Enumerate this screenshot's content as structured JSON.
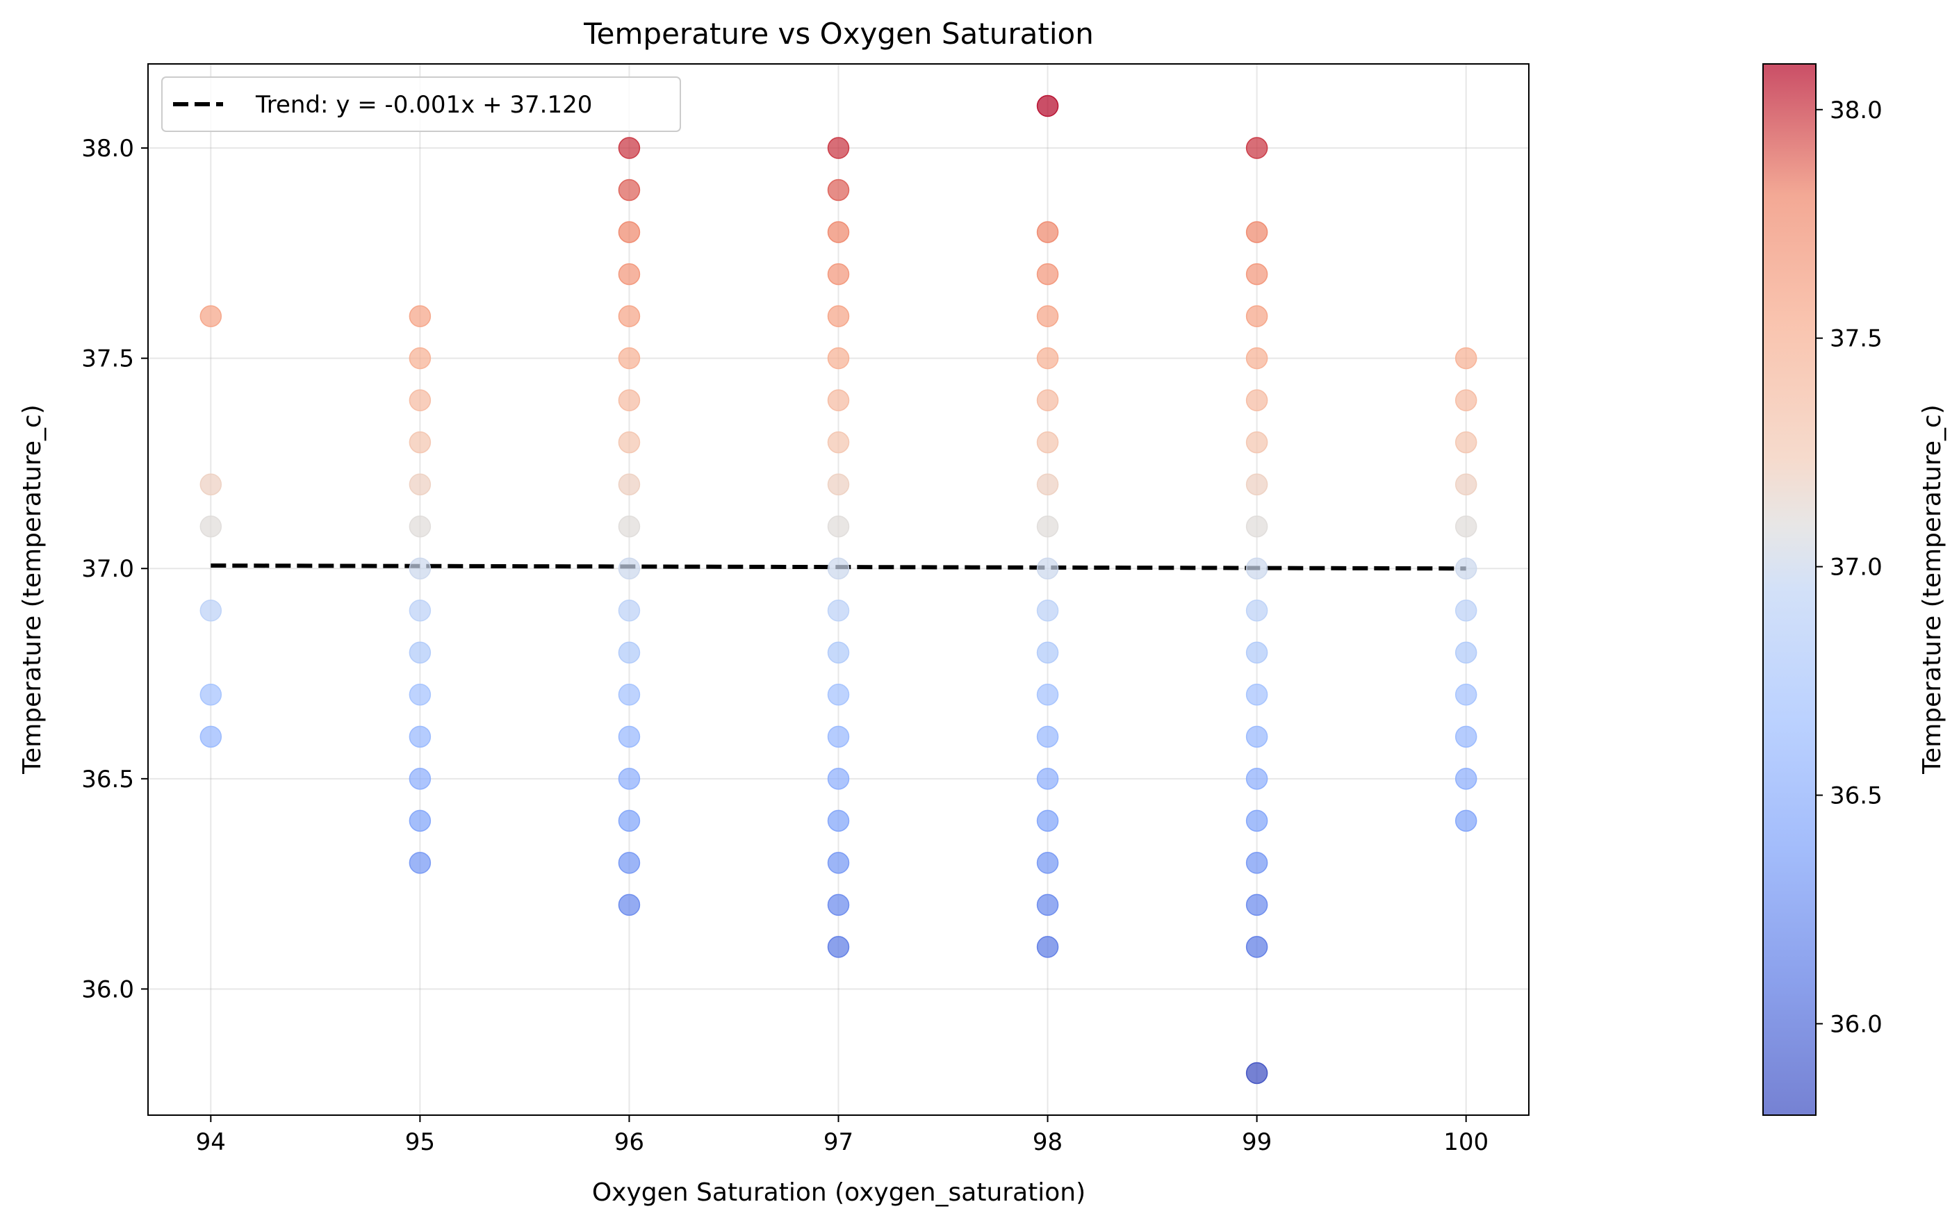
{
  "chart_data": {
    "type": "scatter",
    "title": "Temperature vs Oxygen Saturation",
    "xlabel": "Oxygen Saturation (oxygen_saturation)",
    "ylabel": "Temperature (temperature_c)",
    "xlim": [
      93.7,
      100.3
    ],
    "ylim": [
      35.7,
      38.2
    ],
    "xticks": [
      94,
      95,
      96,
      97,
      98,
      99,
      100
    ],
    "yticks": [
      36.0,
      36.5,
      37.0,
      37.5,
      38.0
    ],
    "ytick_labels": [
      "36.0",
      "36.5",
      "37.0",
      "37.5",
      "38.0"
    ],
    "grid": true,
    "legend_position": "top-left",
    "colormap": "coolwarm",
    "colorbar": {
      "label": "Temperature (temperature_c)",
      "min": 35.8,
      "max": 38.1,
      "ticks": [
        36.0,
        36.5,
        37.0,
        37.5,
        38.0
      ],
      "tick_labels": [
        "36.0",
        "36.5",
        "37.0",
        "37.5",
        "38.0"
      ]
    },
    "trend": {
      "label": "Trend: y = -0.001x + 37.120",
      "slope": -0.001,
      "intercept": 37.12,
      "x_range": [
        94,
        100
      ],
      "y_range": [
        37.007,
        37.0
      ],
      "color": "#000000"
    },
    "points": [
      {
        "x": 94,
        "y": [
          37.6,
          37.2,
          37.1,
          36.9,
          36.7,
          36.6
        ]
      },
      {
        "x": 95,
        "y": [
          37.6,
          37.5,
          37.4,
          37.3,
          37.2,
          37.1,
          37.0,
          36.9,
          36.8,
          36.7,
          36.6,
          36.5,
          36.4,
          36.3
        ]
      },
      {
        "x": 96,
        "y": [
          38.0,
          37.9,
          37.8,
          37.7,
          37.6,
          37.5,
          37.4,
          37.3,
          37.2,
          37.1,
          37.0,
          36.9,
          36.8,
          36.7,
          36.6,
          36.5,
          36.4,
          36.3,
          36.2
        ]
      },
      {
        "x": 97,
        "y": [
          38.0,
          37.9,
          37.8,
          37.7,
          37.6,
          37.5,
          37.4,
          37.3,
          37.2,
          37.1,
          37.0,
          36.9,
          36.8,
          36.7,
          36.6,
          36.5,
          36.4,
          36.3,
          36.2,
          36.1
        ]
      },
      {
        "x": 98,
        "y": [
          38.1,
          37.8,
          37.7,
          37.6,
          37.5,
          37.4,
          37.3,
          37.2,
          37.1,
          37.0,
          36.9,
          36.8,
          36.7,
          36.6,
          36.5,
          36.4,
          36.3,
          36.2,
          36.1
        ]
      },
      {
        "x": 99,
        "y": [
          38.0,
          37.8,
          37.7,
          37.6,
          37.5,
          37.4,
          37.3,
          37.2,
          37.1,
          37.0,
          36.9,
          36.8,
          36.7,
          36.6,
          36.5,
          36.4,
          36.3,
          36.2,
          36.1,
          35.8
        ]
      },
      {
        "x": 100,
        "y": [
          37.5,
          37.4,
          37.3,
          37.2,
          37.1,
          37.0,
          36.9,
          36.8,
          36.7,
          36.6,
          36.5,
          36.4
        ]
      }
    ]
  }
}
